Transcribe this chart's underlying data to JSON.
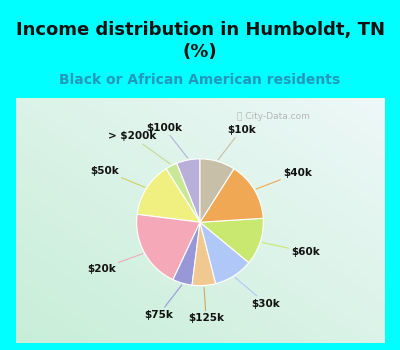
{
  "title": "Income distribution in Humboldt, TN\n(%)",
  "subtitle": "Black or African American residents",
  "watermark": "ⓘ City-Data.com",
  "labels": [
    "$100k",
    "> $200k",
    "$50k",
    "$20k",
    "$75k",
    "$125k",
    "$30k",
    "$60k",
    "$40k",
    "$10k"
  ],
  "sizes": [
    6,
    3,
    14,
    20,
    5,
    6,
    10,
    12,
    15,
    9
  ],
  "colors": [
    "#b8b0d8",
    "#c8e896",
    "#f0f080",
    "#f4a8b8",
    "#9898d8",
    "#f0c890",
    "#b0c8f8",
    "#c8e870",
    "#f0a855",
    "#c8bfa8"
  ],
  "line_colors": [
    "#b8b0d8",
    "#c8d890",
    "#d0d060",
    "#f4a8b8",
    "#9898d8",
    "#d0a860",
    "#b0c8f8",
    "#c8e870",
    "#f0a855",
    "#c8bfa8"
  ],
  "title_fontsize": 13,
  "subtitle_fontsize": 10,
  "title_color": "#111111",
  "subtitle_color": "#2299bb",
  "border_color": "#00ffff",
  "border_width": 8,
  "chart_bg_left": "#c8eed8",
  "chart_bg_right": "#e8f8f8",
  "label_fontsize": 7.5
}
